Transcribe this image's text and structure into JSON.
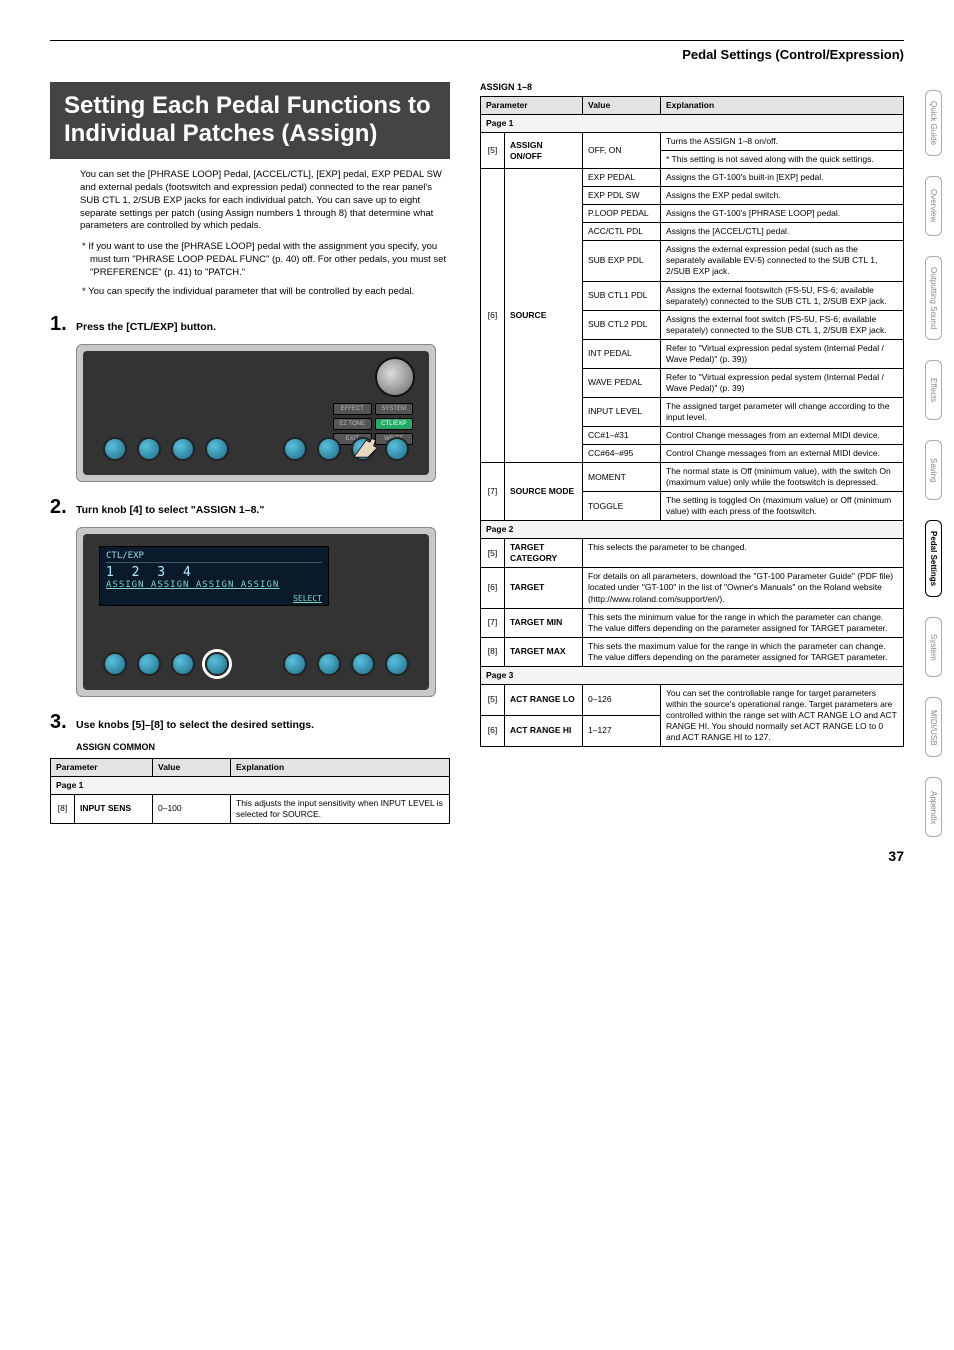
{
  "breadcrumb": "Pedal Settings (Control/Expression)",
  "title": "Setting Each Pedal Functions to Individual Patches (Assign)",
  "intro": "You can set the [PHRASE LOOP] Pedal, [ACCEL/CTL], [EXP] pedal, EXP PEDAL SW and external pedals (footswitch and expression pedal) connected to the rear panel's SUB CTL 1, 2/SUB EXP jacks for each individual patch. You can save up to eight separate settings per patch (using Assign numbers 1 through 8) that determine what parameters are controlled by which pedals.",
  "notes": [
    "* If you want to use the [PHRASE LOOP] pedal with the assignment you specify, you must turn \"PHRASE LOOP PEDAL FUNC\" (p. 40) off. For other pedals, you must set \"PREFERENCE\" (p. 41) to \"PATCH.\"",
    "* You can specify the individual parameter that will be controlled by each pedal."
  ],
  "steps": {
    "s1": {
      "num": "1.",
      "text": "Press the [CTL/EXP] button."
    },
    "s2": {
      "num": "2.",
      "text": "Turn knob [4] to select \"ASSIGN 1–8.\""
    },
    "s3": {
      "num": "3.",
      "text": "Use knobs [5]–[8] to select the desired settings.",
      "sub": "ASSIGN COMMON"
    }
  },
  "screen2": {
    "header": "CTL/EXP",
    "items": "ASSIGN  ASSIGN  ASSIGN  ASSIGN",
    "nums": "1   2   3   4",
    "select": "SELECT"
  },
  "btns": {
    "effect": "EFFECT",
    "system": "SYSTEM",
    "eztone": "EZ TONE",
    "ctlexp": "CTL/EXP",
    "exit": "EXIT",
    "write": "WRITE"
  },
  "leftTable": {
    "headers": [
      "Parameter",
      "Value",
      "Explanation"
    ],
    "page": "Page 1",
    "row": {
      "idx": "[8]",
      "param": "INPUT SENS",
      "value": "0–100",
      "expl": "This adjusts the input sensitivity when INPUT LEVEL is selected for SOURCE."
    }
  },
  "assignTitle": "ASSIGN 1–8",
  "rightTable": {
    "headers": [
      "Parameter",
      "Value",
      "Explanation"
    ],
    "page1": "Page 1",
    "page2": "Page 2",
    "page3": "Page 3",
    "rows": {
      "assignOn": {
        "idx": "[5]",
        "param": "ASSIGN ON/OFF",
        "value": "OFF, ON",
        "e1": "Turns the ASSIGN 1–8 on/off.",
        "e2": "* This setting is not saved along with the quick settings."
      },
      "sourceIdx": "[6]",
      "sourceParam": "SOURCE",
      "src": [
        {
          "v": "EXP PEDAL",
          "e": "Assigns the GT-100's built-in [EXP] pedal."
        },
        {
          "v": "EXP PDL SW",
          "e": "Assigns the EXP pedal switch."
        },
        {
          "v": "P.LOOP PEDAL",
          "e": "Assigns the GT-100's [PHRASE LOOP] pedal."
        },
        {
          "v": "ACC/CTL PDL",
          "e": "Assigns the [ACCEL/CTL] pedal."
        },
        {
          "v": "SUB EXP PDL",
          "e": "Assigns the external expression pedal (such as the separately available EV-5) connected to the SUB CTL 1, 2/SUB EXP jack."
        },
        {
          "v": "SUB CTL1 PDL",
          "e": "Assigns the external footswitch (FS-5U, FS-6; available separately) connected to the SUB CTL 1, 2/SUB EXP jack."
        },
        {
          "v": "SUB CTL2 PDL",
          "e": "Assigns the external foot switch (FS-5U, FS-6; available separately) connected to the SUB CTL 1, 2/SUB EXP jack."
        },
        {
          "v": "INT PEDAL",
          "e": "Refer to \"Virtual expression pedal system (Internal Pedal / Wave Pedal)\" (p. 39))"
        },
        {
          "v": "WAVE PEDAL",
          "e": "Refer to \"Virtual expression pedal system (Internal Pedal / Wave Pedal)\" (p. 39)"
        },
        {
          "v": "INPUT LEVEL",
          "e": "The assigned target parameter will change according to the input level."
        },
        {
          "v": "CC#1–#31",
          "e": "Control Change messages from an external MIDI device."
        },
        {
          "v": "CC#64–#95",
          "e": "Control Change messages from an external MIDI device."
        }
      ],
      "sourceModeIdx": "[7]",
      "sourceModeParam": "SOURCE MODE",
      "mode": [
        {
          "v": "MOMENT",
          "e": "The normal state is Off (minimum value), with the switch On (maximum value) only while the footswitch is depressed."
        },
        {
          "v": "TOGGLE",
          "e": "The setting is toggled On (maximum value) or Off (minimum value) with each press of the footswitch."
        }
      ],
      "targetCat": {
        "idx": "[5]",
        "param": "TARGET CATEGORY",
        "e": "This selects the parameter to be changed."
      },
      "target": {
        "idx": "[6]",
        "param": "TARGET",
        "e": "For details on all parameters, download the \"GT-100 Parameter Guide\" (PDF file) located under \"GT-100\" in the list of \"Owner's Manuals\" on the Roland website (http://www.roland.com/support/en/)."
      },
      "targetMin": {
        "idx": "[7]",
        "param": "TARGET MIN",
        "e": "This sets the minimum value for the range in which the parameter can change. The value differs depending on the parameter assigned for TARGET parameter."
      },
      "targetMax": {
        "idx": "[8]",
        "param": "TARGET MAX",
        "e": "This sets the maximum value for the range in which the parameter can change. The value differs depending on the parameter assigned for TARGET parameter."
      },
      "actLo": {
        "idx": "[5]",
        "param": "ACT RANGE LO",
        "v": "0–126",
        "e": "You can set the controllable range for target parameters within the source's operational range. Target parameters are controlled within the range set with ACT RANGE LO and ACT RANGE HI. You should normally set ACT RANGE LO to 0 and ACT RANGE HI to 127."
      },
      "actHi": {
        "idx": "[6]",
        "param": "ACT RANGE HI",
        "v": "1–127"
      }
    }
  },
  "tabs": [
    "Quick Guide",
    "Overview",
    "Outputting Sound",
    "Effects",
    "Saving",
    "Pedal Settings",
    "System",
    "MIDI/USB",
    "Appendix"
  ],
  "activeTab": "Pedal Settings",
  "pageNum": "37"
}
